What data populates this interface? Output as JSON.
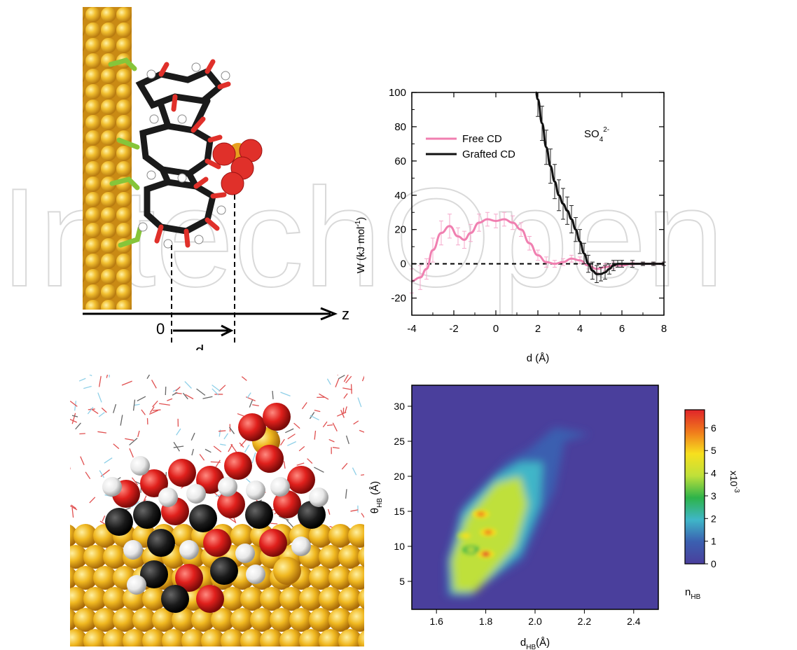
{
  "watermark": {
    "text": "IntechOpen"
  },
  "schematic": {
    "axis_label": "z",
    "origin_label": "0",
    "distance_label": "d"
  },
  "snapshot": {
    "description_icon": "molecule-on-gold-surface"
  },
  "chart_data": [
    {
      "type": "line",
      "xlabel": "d (Å)",
      "ylabel": "W (kJ mol⁻¹)",
      "annotation": "SO₄²⁻",
      "xlim": [
        -4,
        8
      ],
      "ylim": [
        -30,
        100
      ],
      "xticks": [
        -4,
        -2,
        0,
        2,
        4,
        6,
        8
      ],
      "yticks": [
        -20,
        0,
        20,
        40,
        60,
        80,
        100
      ],
      "legend_position": "top-left",
      "series": [
        {
          "name": "Free CD",
          "color": "#f07fb0",
          "x": [
            -4.0,
            -3.6,
            -3.3,
            -3.0,
            -2.6,
            -2.2,
            -1.8,
            -1.5,
            -1.2,
            -0.8,
            -0.4,
            0.0,
            0.4,
            0.8,
            1.2,
            1.6,
            2.0,
            2.4,
            2.8,
            3.2,
            3.6,
            4.0,
            4.4,
            4.8,
            5.2,
            5.6,
            6.0,
            6.5,
            7.0,
            7.5,
            8.0
          ],
          "y": [
            -10,
            -8,
            -3,
            8,
            18,
            22,
            16,
            14,
            18,
            24,
            26,
            25,
            26,
            24,
            20,
            12,
            5,
            1,
            0,
            1,
            3,
            2,
            -1,
            -3,
            -2,
            -1,
            -1,
            0,
            0,
            0,
            0
          ],
          "errors": [
            7,
            7,
            6,
            7,
            7,
            7,
            5,
            5,
            5,
            5,
            4,
            4,
            4,
            4,
            4,
            4,
            3,
            3,
            2,
            2,
            2,
            2,
            2,
            2,
            2,
            2,
            1,
            1,
            1,
            1,
            1
          ]
        },
        {
          "name": "Grafted CD",
          "color": "#111111",
          "x": [
            1.9,
            2.0,
            2.2,
            2.4,
            2.6,
            2.8,
            3.0,
            3.2,
            3.4,
            3.6,
            3.8,
            4.0,
            4.2,
            4.4,
            4.6,
            4.8,
            5.0,
            5.2,
            5.4,
            5.6,
            5.8,
            6.0,
            6.5,
            7.0,
            7.5,
            8.0
          ],
          "y": [
            100,
            96,
            82,
            68,
            57,
            48,
            40,
            35,
            31,
            26,
            20,
            13,
            6,
            0,
            -4,
            -6,
            -6,
            -5,
            -3,
            -1,
            0,
            0,
            0,
            0,
            0,
            0
          ],
          "errors": [
            0,
            10,
            10,
            10,
            10,
            10,
            9,
            9,
            8,
            8,
            7,
            7,
            6,
            5,
            5,
            5,
            4,
            4,
            3,
            3,
            2,
            2,
            2,
            1,
            1,
            1
          ]
        }
      ],
      "reference_line": {
        "y": 0,
        "style": "dashed"
      }
    },
    {
      "type": "heatmap",
      "xlabel": "d_HB(Å)",
      "ylabel": "θ_HB (Å)",
      "xlim": [
        1.5,
        2.5
      ],
      "ylim": [
        1,
        33
      ],
      "xticks": [
        1.6,
        1.8,
        2.0,
        2.2,
        2.4
      ],
      "yticks": [
        5,
        10,
        15,
        20,
        25,
        30
      ],
      "colorbar": {
        "label": "n_HB",
        "multiplier": "x10⁻³",
        "min": 0,
        "max": 6.8,
        "ticks": [
          0,
          1,
          2,
          3,
          4,
          5,
          6
        ],
        "colors": [
          "#4a3f9c",
          "#3b5fb0",
          "#3fb6c8",
          "#2db34a",
          "#bfe03a",
          "#f7e01e",
          "#f07a1c",
          "#e0242a"
        ]
      },
      "background_value": 0.4,
      "hotspots": [
        {
          "x": 1.8,
          "y": 8.9,
          "value": 6.5
        },
        {
          "x": 1.81,
          "y": 12.0,
          "value": 6.0
        },
        {
          "x": 1.78,
          "y": 14.6,
          "value": 5.5
        },
        {
          "x": 1.72,
          "y": 11.5,
          "value": 4.5
        },
        {
          "x": 1.74,
          "y": 9.5,
          "value": 4.2
        }
      ]
    }
  ],
  "heatmap_labels": {
    "ylabel_main": "θ",
    "ylabel_sub": "HB",
    "ylabel_unit": " (Å)",
    "xlabel_main": "d",
    "xlabel_sub": "HB",
    "xlabel_unit": "(Å)",
    "cbar_main": "n",
    "cbar_sub": "HB",
    "cbar_mult": "x10",
    "cbar_exp": "-3"
  },
  "line_labels": {
    "ylabel": "W (kJ mol",
    "ylabel_exp": "-1",
    "ylabel_end": ")",
    "xlabel": "d (Å)",
    "annot_main": "SO",
    "annot_sub": "4",
    "annot_sup": "2-"
  }
}
